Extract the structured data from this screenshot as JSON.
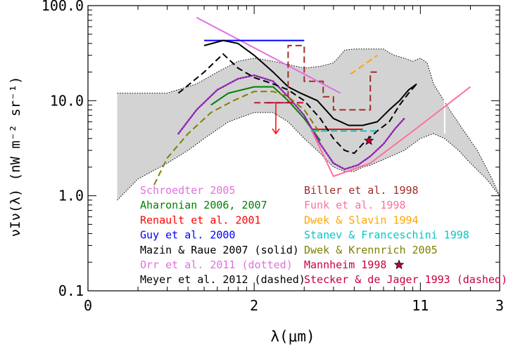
{
  "chart_data": {
    "type": "line",
    "title": "",
    "xlabel": "λ(μm)",
    "ylabel": "νIν(λ) (nW m⁻² sr⁻¹)",
    "x_scale": "log",
    "y_scale": "log",
    "xlim": [
      0.1,
      30
    ],
    "ylim": [
      0.1,
      100
    ],
    "x_ticks": [
      {
        "value": 0.1,
        "label": "0"
      },
      {
        "value": 1,
        "label": "2"
      },
      {
        "value": 10,
        "label": "11"
      },
      {
        "value": 30,
        "label": "3"
      }
    ],
    "y_ticks": [
      {
        "value": 0.1,
        "label": "0.1"
      },
      {
        "value": 1,
        "label": "1.0"
      },
      {
        "value": 10,
        "label": "10.0"
      },
      {
        "value": 100,
        "label": "100.0"
      }
    ],
    "legend_left": [
      {
        "label": "Schroedter 2005",
        "color": "#e070e0"
      },
      {
        "label": "Aharonian 2006, 2007",
        "color": "#008000"
      },
      {
        "label": "Renault et al. 2001",
        "color": "#ff0000"
      },
      {
        "label": "Guy et al. 2000",
        "color": "#0000ff"
      },
      {
        "label": "Mazin & Raue 2007 (solid)",
        "color": "#000000"
      },
      {
        "label": "Orr et al. 2011 (dotted)",
        "color": "#e070e0"
      },
      {
        "label": "Meyer et al. 2012 (dashed)",
        "color": "#000000"
      }
    ],
    "legend_right": [
      {
        "label": "Biller et al. 1998",
        "color": "#a52a2a"
      },
      {
        "label": "Funk et al. 1998",
        "color": "#ff6f9f"
      },
      {
        "label": "Dwek & Slavin 1994",
        "color": "#ffa500"
      },
      {
        "label": "Stanev & Franceschini 1998",
        "color": "#00c8c8"
      },
      {
        "label": "Dwek & Krennrich 2005",
        "color": "#808000"
      },
      {
        "label": "Mannheim 1998",
        "color": "#c8003c"
      },
      {
        "label": "Stecker & de Jager 1993 (dashed)",
        "color": "#c8003c"
      }
    ],
    "band": {
      "name": "allowed region",
      "upper": [
        [
          0.15,
          12
        ],
        [
          0.2,
          12
        ],
        [
          0.3,
          12
        ],
        [
          0.45,
          15
        ],
        [
          0.6,
          20
        ],
        [
          0.8,
          26
        ],
        [
          1,
          28
        ],
        [
          1.3,
          26
        ],
        [
          1.6,
          24
        ],
        [
          2,
          22
        ],
        [
          2.5,
          23
        ],
        [
          3,
          25
        ],
        [
          3.3,
          30
        ],
        [
          3.5,
          34
        ],
        [
          4,
          35
        ],
        [
          4.5,
          35
        ],
        [
          5,
          35
        ],
        [
          5.5,
          35
        ],
        [
          6,
          35
        ],
        [
          6.5,
          32
        ],
        [
          7,
          30
        ],
        [
          8,
          28
        ],
        [
          9,
          26
        ],
        [
          10,
          28
        ],
        [
          11,
          25
        ],
        [
          12,
          15
        ],
        [
          13,
          12
        ],
        [
          15,
          8
        ],
        [
          18,
          5
        ],
        [
          22,
          3
        ],
        [
          27,
          1.5
        ],
        [
          30,
          1
        ]
      ],
      "lower": [
        [
          0.15,
          0.9
        ],
        [
          0.2,
          1.5
        ],
        [
          0.3,
          2.2
        ],
        [
          0.4,
          3
        ],
        [
          0.5,
          4
        ],
        [
          0.7,
          6
        ],
        [
          1,
          7.5
        ],
        [
          1.3,
          7.5
        ],
        [
          1.6,
          6
        ],
        [
          2,
          4
        ],
        [
          2.5,
          2.8
        ],
        [
          3,
          2
        ],
        [
          3.5,
          1.8
        ],
        [
          4,
          1.8
        ],
        [
          4.5,
          2
        ],
        [
          5,
          2.1
        ],
        [
          6,
          2.4
        ],
        [
          8,
          3
        ],
        [
          10,
          4
        ],
        [
          12,
          4.5
        ],
        [
          14,
          4
        ],
        [
          17,
          3
        ],
        [
          20,
          2.2
        ],
        [
          25,
          1.5
        ],
        [
          30,
          1
        ]
      ]
    },
    "series": [
      {
        "name": "Schroedter 2005",
        "color": "#e070e0",
        "style": "solid",
        "points": [
          [
            0.45,
            75
          ],
          [
            3.3,
            12
          ]
        ]
      },
      {
        "name": "Aharonian 2006, 2007",
        "color": "#008000",
        "style": "solid",
        "points": [
          [
            0.55,
            9
          ],
          [
            0.7,
            12
          ],
          [
            1,
            14
          ],
          [
            1.3,
            14
          ],
          [
            1.6,
            10
          ],
          [
            2,
            6.5
          ],
          [
            2.5,
            3.8
          ]
        ]
      },
      {
        "name": "Renault et al. 2001",
        "color": "#ff0000",
        "style": "solid",
        "points": [
          [
            2.2,
            5
          ],
          [
            4.5,
            5
          ]
        ]
      },
      {
        "name": "Guy et al. 2000",
        "color": "#0000ff",
        "style": "solid",
        "points": [
          [
            0.5,
            43
          ],
          [
            2,
            43
          ]
        ]
      },
      {
        "name": "Mazin & Raue 2007 (solid)",
        "color": "#000000",
        "style": "solid",
        "points": [
          [
            0.5,
            38
          ],
          [
            0.65,
            43
          ],
          [
            0.8,
            40
          ],
          [
            1,
            30
          ],
          [
            1.3,
            20
          ],
          [
            1.6,
            14
          ],
          [
            1.9,
            12
          ],
          [
            2.4,
            10
          ],
          [
            3,
            6.5
          ],
          [
            3.7,
            5.5
          ],
          [
            4.5,
            5.5
          ],
          [
            5.5,
            6
          ],
          [
            6.5,
            8
          ],
          [
            7.5,
            10
          ],
          [
            8.5,
            13
          ],
          [
            9.5,
            15
          ]
        ]
      },
      {
        "name": "Orr et al. 2011 (dotted)",
        "color": "#9020b0",
        "style": "dotted",
        "points": [
          [
            0.35,
            4.5
          ],
          [
            0.45,
            8
          ],
          [
            0.6,
            13
          ],
          [
            0.8,
            17
          ],
          [
            1,
            18.5
          ],
          [
            1.3,
            16
          ],
          [
            1.6,
            11
          ],
          [
            2,
            7
          ],
          [
            2.5,
            3.5
          ],
          [
            3,
            2.2
          ],
          [
            3.5,
            1.9
          ],
          [
            4.2,
            2.1
          ],
          [
            5,
            2.6
          ],
          [
            6,
            3.5
          ],
          [
            7,
            5
          ],
          [
            8,
            6.5
          ]
        ]
      },
      {
        "name": "Meyer et al. 2012 (dashed)",
        "color": "#000000",
        "style": "dashed",
        "points": [
          [
            0.35,
            12
          ],
          [
            0.5,
            20
          ],
          [
            0.65,
            31
          ],
          [
            0.8,
            22
          ],
          [
            1,
            17.5
          ],
          [
            1.3,
            15
          ],
          [
            1.6,
            13
          ],
          [
            2,
            10
          ],
          [
            2.5,
            6.5
          ],
          [
            3,
            4
          ],
          [
            3.5,
            3
          ],
          [
            4,
            2.8
          ],
          [
            4.5,
            3.5
          ],
          [
            5.5,
            4.8
          ],
          [
            6.5,
            6
          ],
          [
            7.5,
            9
          ],
          [
            8.5,
            12
          ],
          [
            9.5,
            15
          ]
        ]
      },
      {
        "name": "Biller et al. 1998",
        "color": "#a52a2a",
        "style": "dashed",
        "points": [
          [
            1,
            9.5
          ],
          [
            1.6,
            9.5
          ],
          [
            1.6,
            38
          ],
          [
            2,
            38
          ],
          [
            2,
            16
          ],
          [
            2.6,
            16
          ],
          [
            2.6,
            11
          ],
          [
            3,
            11
          ],
          [
            3,
            8
          ],
          [
            5,
            8
          ],
          [
            5,
            20
          ],
          [
            5.6,
            20
          ]
        ]
      },
      {
        "name": "Funk et al. 1998",
        "color": "#ff6f9f",
        "style": "solid",
        "points": [
          [
            2.2,
            5
          ],
          [
            3,
            1.6
          ],
          [
            5,
            2.2
          ],
          [
            10,
            5.5
          ],
          [
            20,
            14
          ]
        ]
      },
      {
        "name": "Dwek & Slavin 1994",
        "color": "#ffa500",
        "style": "dashed",
        "points": [
          [
            3.8,
            19
          ],
          [
            5.5,
            30
          ]
        ]
      },
      {
        "name": "Stanev & Franceschini 1998",
        "color": "#00c8c8",
        "style": "dashed",
        "points": [
          [
            2.2,
            4.8
          ],
          [
            5.5,
            4.8
          ]
        ]
      },
      {
        "name": "Dwek & Krennrich 2005",
        "color": "#808000",
        "style": "dashed",
        "points": [
          [
            0.25,
            1.3
          ],
          [
            0.3,
            2.5
          ],
          [
            0.4,
            4.5
          ],
          [
            0.55,
            7.5
          ],
          [
            0.75,
            10
          ],
          [
            1,
            12.5
          ],
          [
            1.3,
            12.5
          ],
          [
            1.6,
            11
          ],
          [
            2,
            8
          ],
          [
            2.5,
            4.5
          ]
        ]
      },
      {
        "name": "Stecker & de Jager 1993 (dashed)",
        "color": "#c8003c",
        "style": "dashed",
        "points": [
          [
            1.2,
            9.5
          ],
          [
            2,
            9.5
          ]
        ]
      }
    ],
    "arrow": {
      "series": "Biller et al. 1998",
      "color": "#ff0000",
      "x": 1.35,
      "y_from": 9.5,
      "y_to": 4.5
    },
    "star": {
      "series": "Mannheim 1998",
      "color": "#c8003c",
      "x": 4.9,
      "y": 3.8
    },
    "white_gap_x": 14
  }
}
